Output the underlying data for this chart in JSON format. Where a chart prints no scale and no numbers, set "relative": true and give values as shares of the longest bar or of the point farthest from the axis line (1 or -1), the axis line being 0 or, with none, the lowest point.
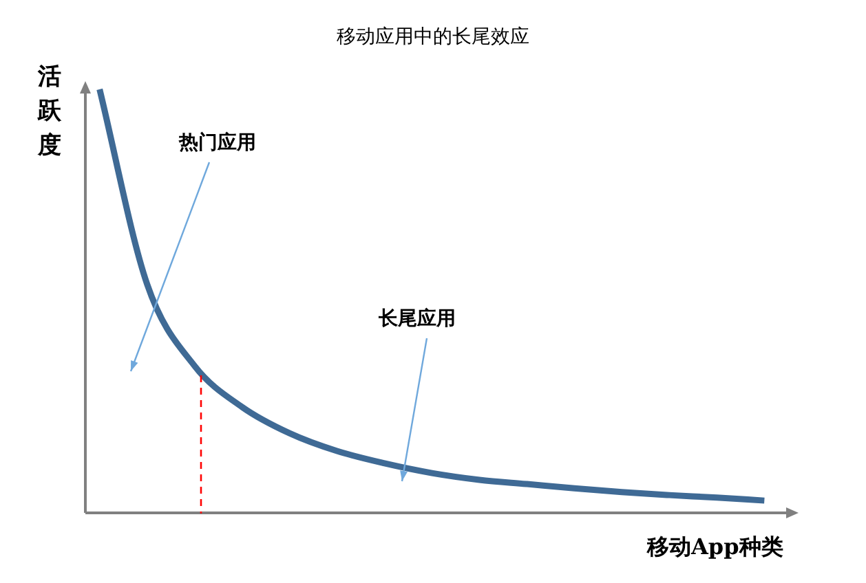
{
  "chart_data": {
    "type": "line",
    "title": "移动应用中的长尾效应",
    "xlabel": "移动App种类",
    "ylabel": "活跃度",
    "relative": true,
    "grid": false,
    "legend": false,
    "marker": "none",
    "line_style": "solid",
    "categories": [
      null,
      null,
      null,
      null,
      null,
      null,
      null,
      null,
      null,
      null,
      null,
      null,
      null,
      null,
      null
    ],
    "series": [
      {
        "color": "#3f6a95",
        "values": [
          1,
          0.54,
          0.347,
          0.25,
          0.188,
          0.146,
          0.117,
          0.094,
          0.078,
          0.068,
          0.058,
          0.049,
          0.042,
          0.036,
          0.029
        ]
      }
    ],
    "annotations": [
      "热门应用",
      "长尾应用"
    ]
  }
}
